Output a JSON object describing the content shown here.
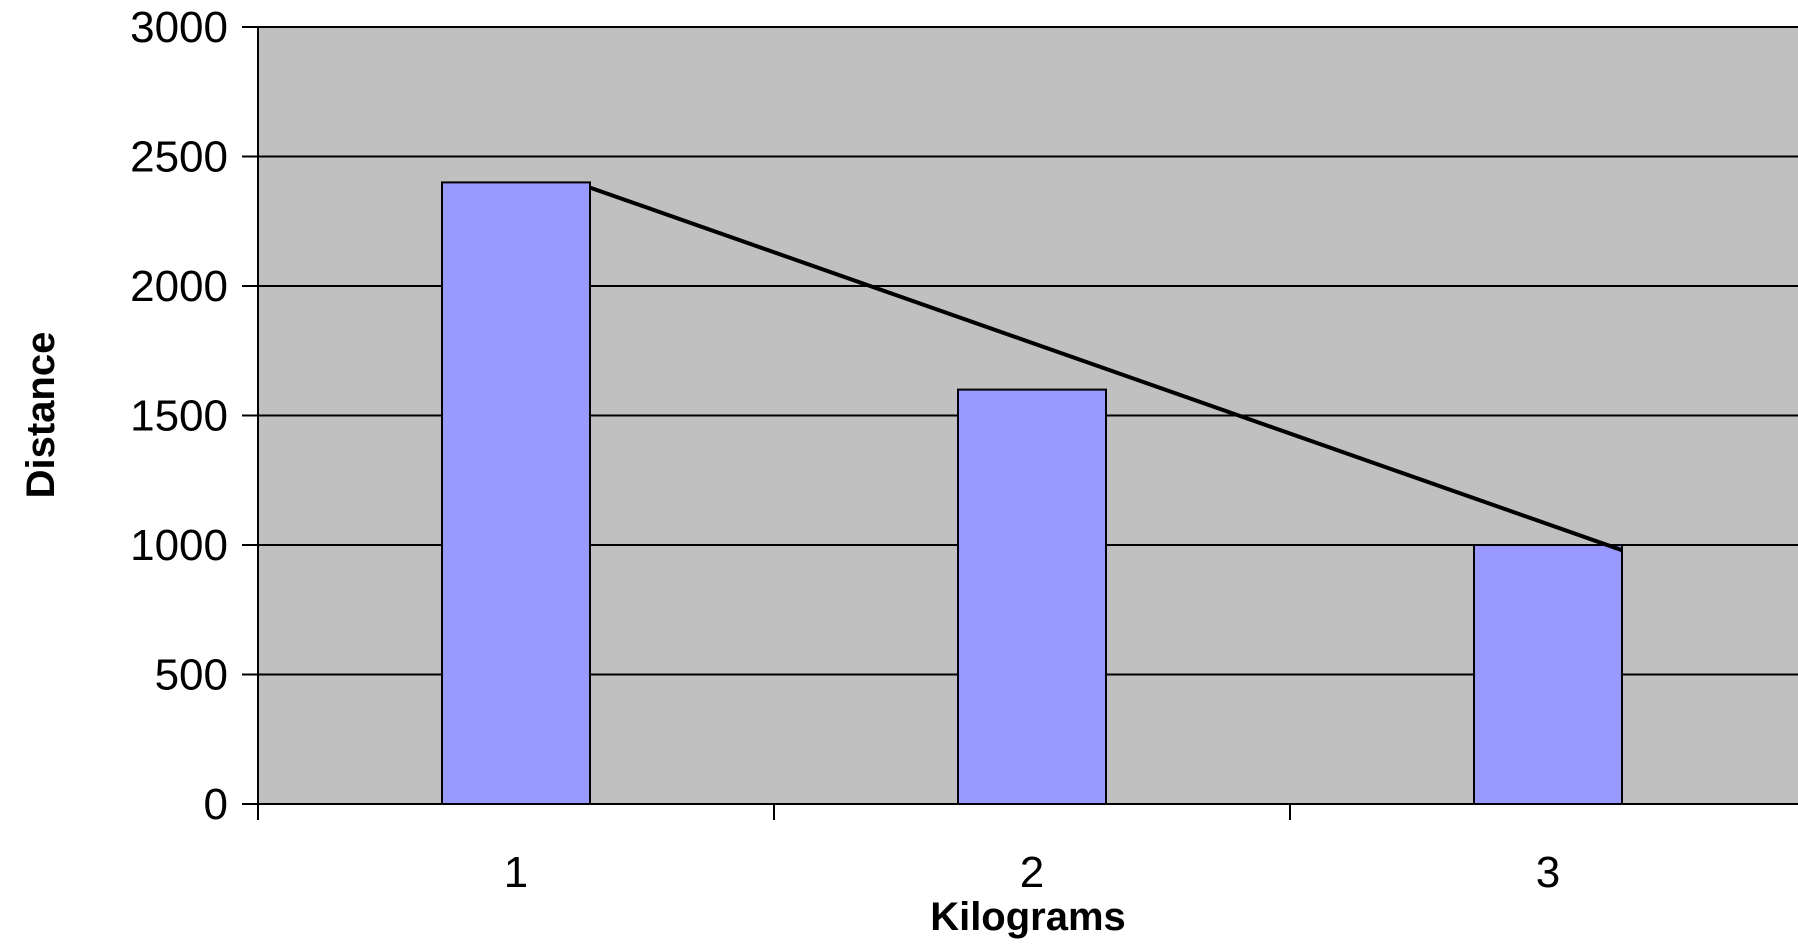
{
  "chart_data": {
    "type": "bar",
    "title": "",
    "xlabel": "Kilograms",
    "ylabel": "Distance",
    "categories": [
      "1",
      "2",
      "3"
    ],
    "series": [
      {
        "kind": "bar",
        "values": [
          2400,
          1600,
          1000
        ]
      },
      {
        "kind": "line",
        "values": [
          2380,
          1680,
          980
        ]
      }
    ],
    "ylim": [
      0,
      3000
    ],
    "yticks": [
      0,
      500,
      1000,
      1500,
      2000,
      2500,
      3000
    ],
    "ytick_labels": [
      "0",
      "500",
      "1000",
      "1500",
      "2000",
      "2500",
      "3000"
    ],
    "grid": true,
    "legend": "none",
    "colors": {
      "plot_background": "#c0c0c0",
      "bar_fill": "#9999ff",
      "bar_stroke": "#000000",
      "line": "#000000",
      "gridline": "#000000"
    }
  }
}
